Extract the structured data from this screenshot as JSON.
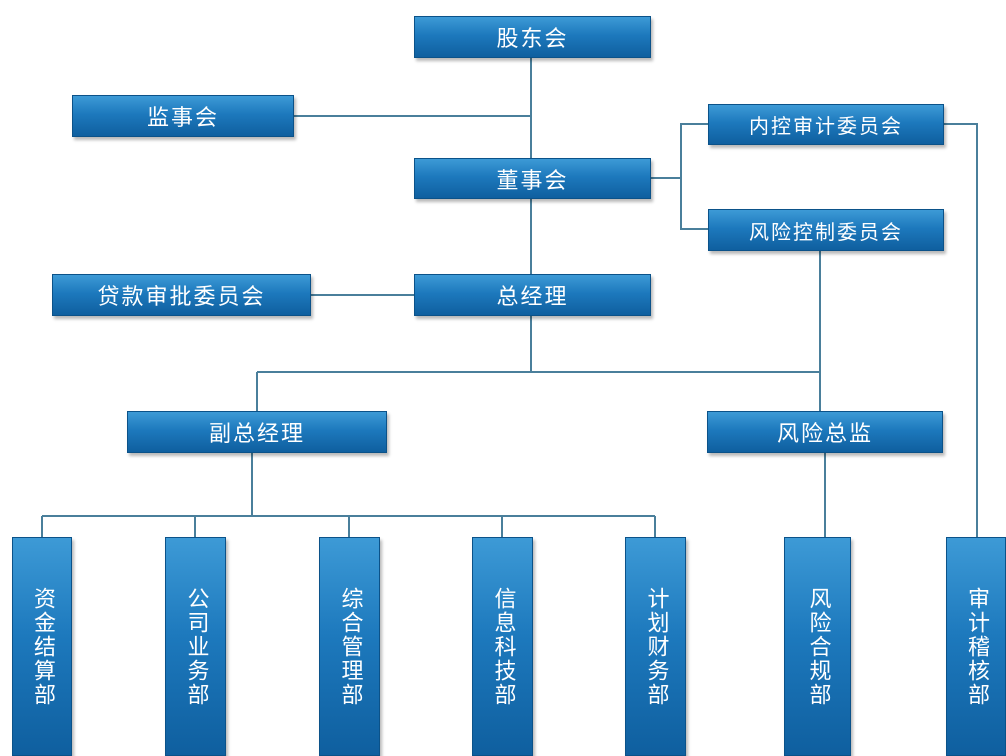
{
  "nodes": {
    "shareholders": "股东会",
    "supervisors": "监事会",
    "board": "董事会",
    "internal_audit_committee": "内控审计委员会",
    "risk_control_committee": "风险控制委员会",
    "loan_committee": "贷款审批委员会",
    "general_manager": "总经理",
    "deputy_gm": "副总经理",
    "risk_director": "风险总监",
    "departments": [
      "资金结算部",
      "公司业务部",
      "综合管理部",
      "信息科技部",
      "计划财务部",
      "风险合规部",
      "审计稽核部"
    ]
  },
  "colors": {
    "box_top": "#3d9ad6",
    "box_bottom": "#0f5f9f",
    "connector": "#4a7f9b",
    "text": "#ffffff"
  }
}
